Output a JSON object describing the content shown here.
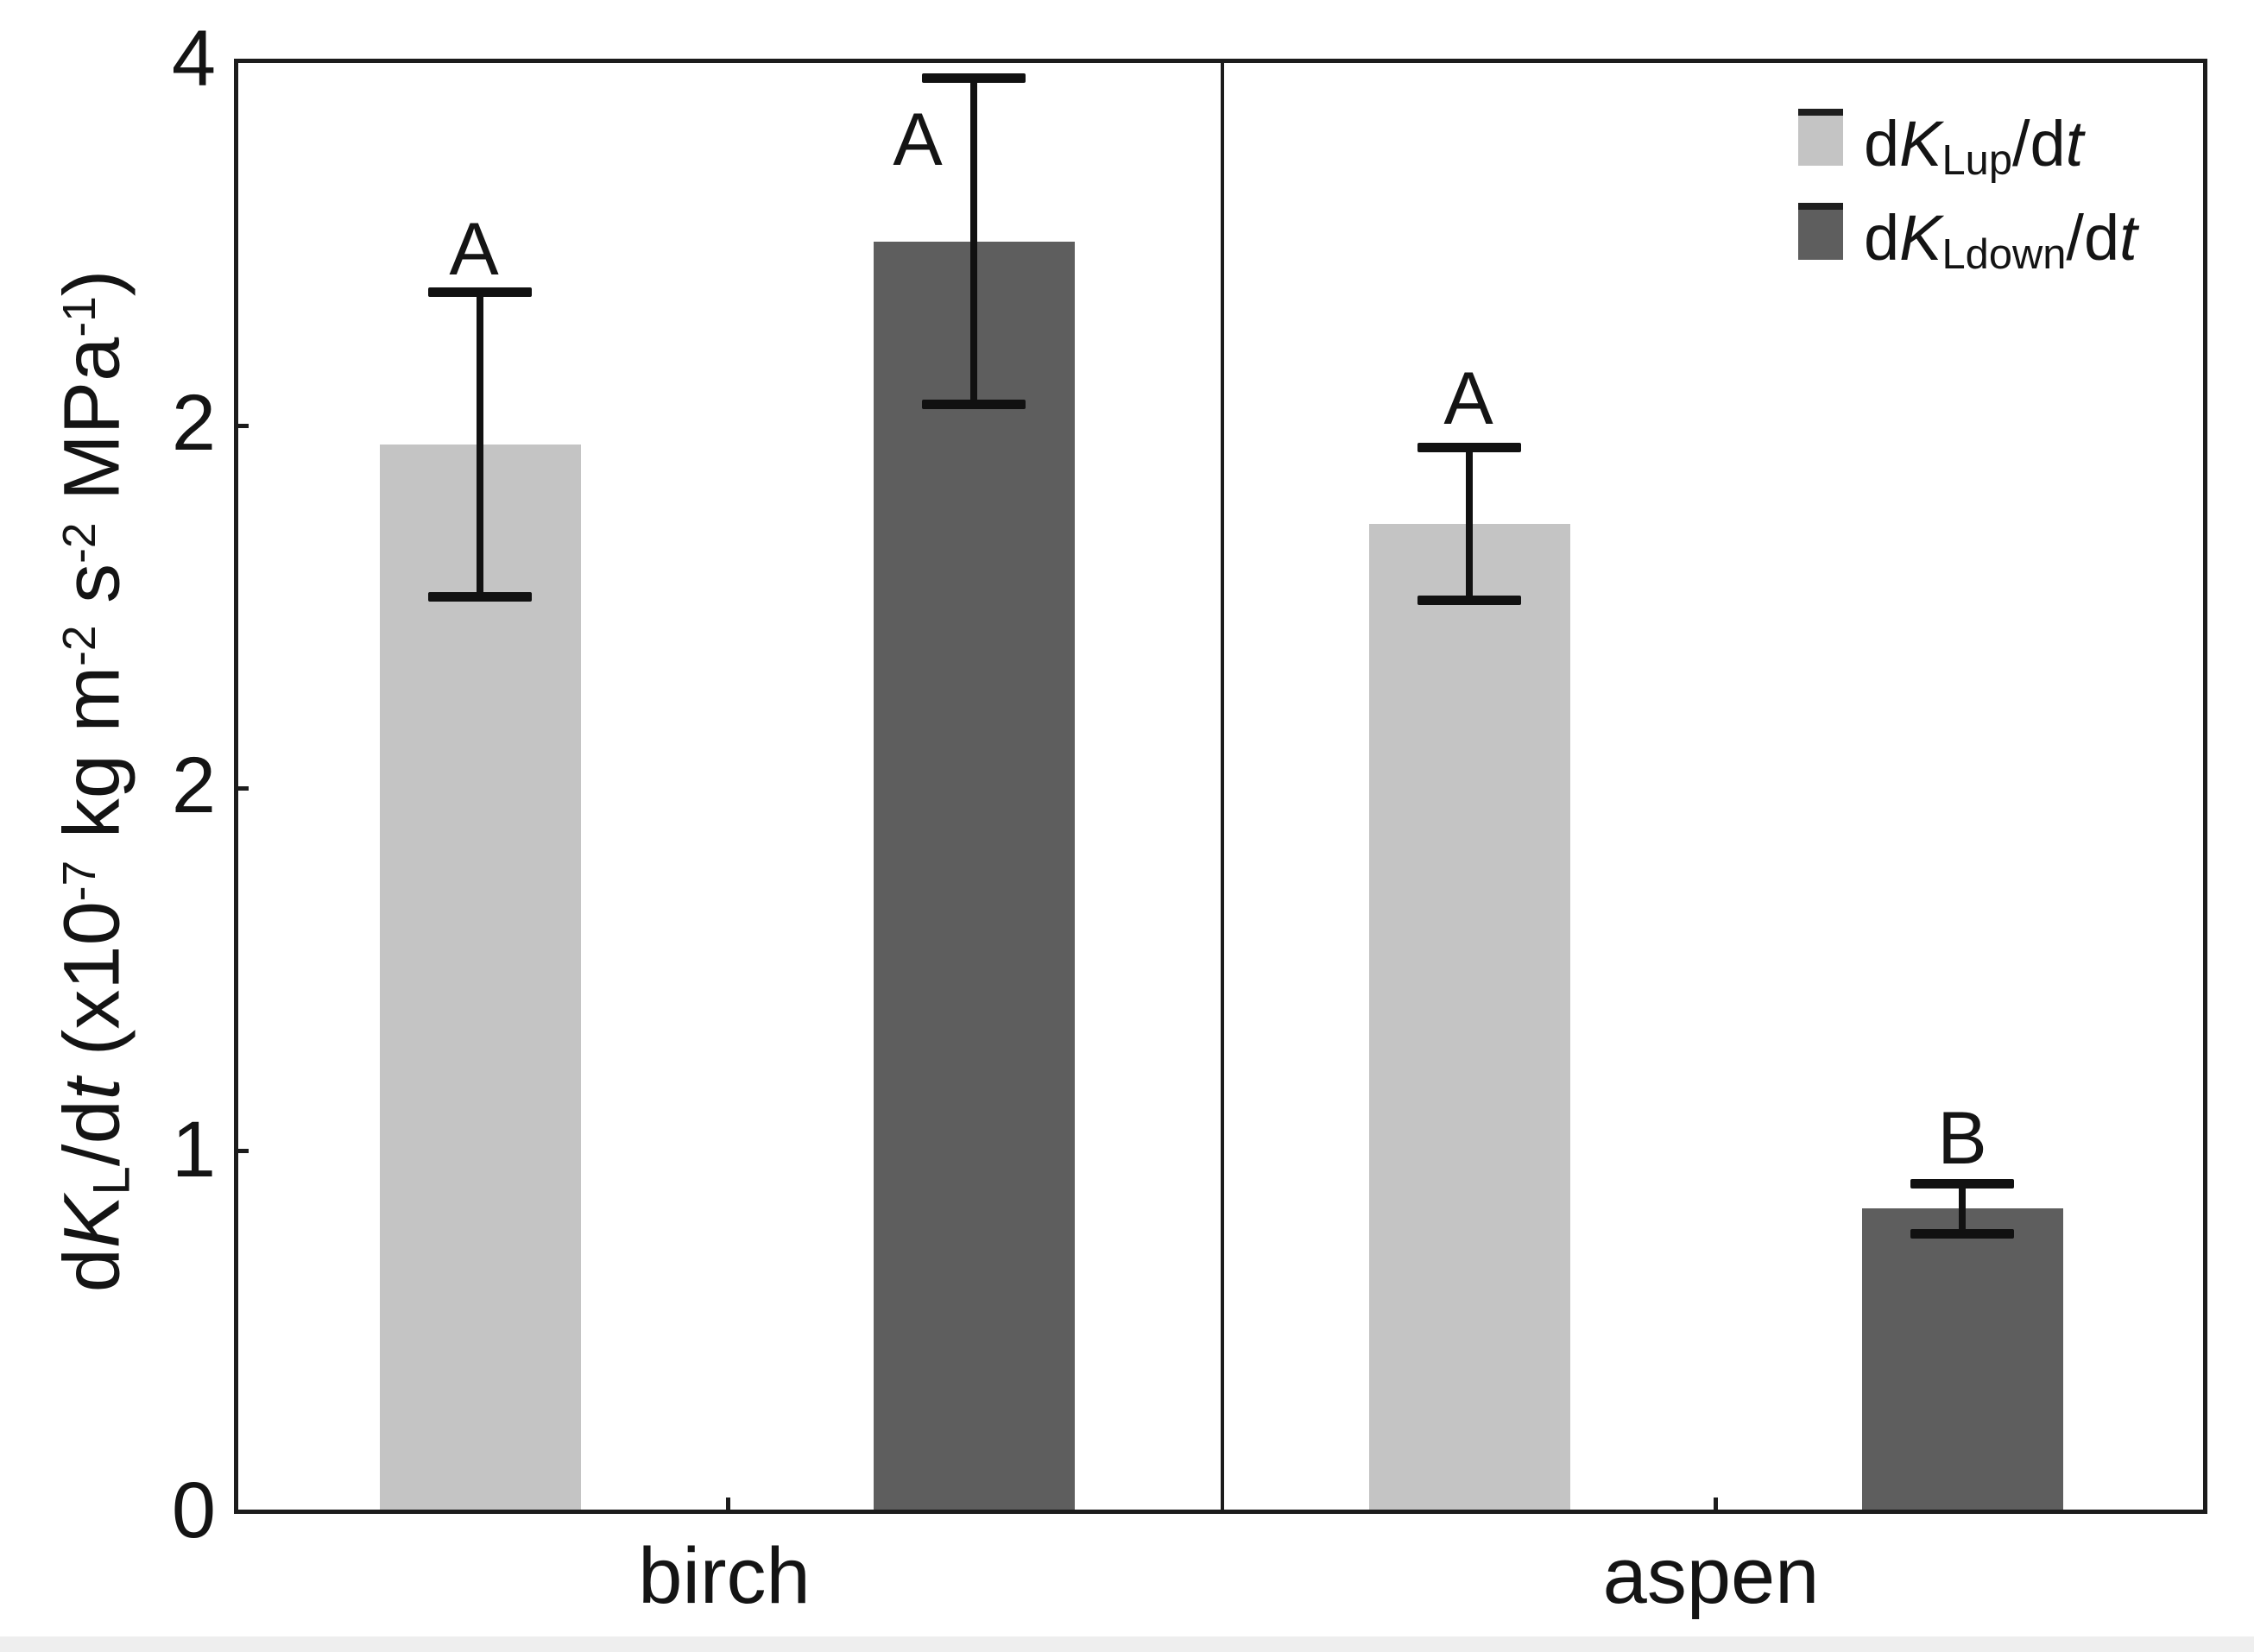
{
  "figure": {
    "description": "Grouped bar chart with error bars comparing dKLup/dt and dKLdown/dt for birch and aspen"
  },
  "y_axis": {
    "tick_labels": [
      "4",
      "2",
      "2",
      "1",
      "0"
    ],
    "title_parts": {
      "d1": "d",
      "K": "K",
      "subL": "L",
      "slashd": "/d",
      "t1": "t",
      "open": " (x10",
      "sup7": "-7",
      "kgm": " kg m",
      "sup2a": "-2",
      "s": " s",
      "sup2b": "-2",
      "mpa": " MPa",
      "sup1": "-1",
      "close": ")"
    }
  },
  "x_axis": {
    "categories": [
      "birch",
      "aspen"
    ]
  },
  "legend": {
    "items": [
      {
        "d1": "d",
        "K": "K",
        "sub": "Lup",
        "slashd": "/d",
        "t": "t",
        "swatch_color": "#c4c4c4"
      },
      {
        "d1": "d",
        "K": "K",
        "sub": "Ldown",
        "slashd": "/d",
        "t": "t",
        "swatch_color": "#5e5e5e"
      }
    ]
  },
  "bars": [
    {
      "category": "birch",
      "series": "dKLup/dt",
      "letter": "A"
    },
    {
      "category": "birch",
      "series": "dKLdown/dt",
      "letter": "A"
    },
    {
      "category": "aspen",
      "series": "dKLup/dt",
      "letter": "A"
    },
    {
      "category": "aspen",
      "series": "dKLdown/dt",
      "letter": "B"
    }
  ],
  "colors": {
    "light_bar": "#c4c4c4",
    "dark_bar": "#5e5e5e",
    "axis": "#1c1c1c",
    "background": "#ffffff"
  },
  "chart_data": {
    "type": "bar",
    "categories": [
      "birch",
      "aspen"
    ],
    "series": [
      {
        "name": "dKLup/dt",
        "color": "#c4c4c4",
        "values": [
          2.95,
          2.73
        ],
        "errors": [
          0.42,
          0.21
        ]
      },
      {
        "name": "dKLdown/dt",
        "color": "#5e5e5e",
        "values": [
          3.51,
          0.84
        ],
        "errors": [
          0.45,
          0.07
        ]
      }
    ],
    "significance_letters": {
      "birch": [
        "A",
        "A"
      ],
      "aspen": [
        "A",
        "B"
      ]
    },
    "title": "",
    "xlabel": "",
    "ylabel": "dKL/dt (x10-7 kg m-2 s-2 MPa-1)",
    "ylim": [
      0,
      4
    ],
    "ytick_labels_top_to_bottom": [
      "4",
      "2",
      "2",
      "1",
      "0"
    ],
    "legend_position": "top-right",
    "grid": false,
    "panel_divider_between_categories": true,
    "error_bar_style": "symmetric caps"
  }
}
